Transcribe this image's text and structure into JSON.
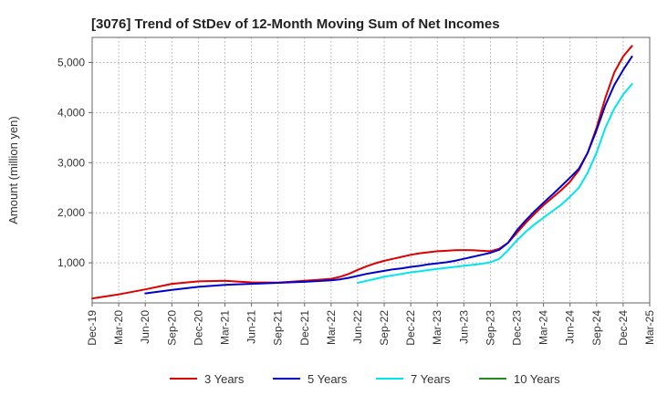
{
  "chart_data": {
    "type": "line",
    "title": "[3076]  Trend of StDev of 12-Month Moving Sum of Net Incomes",
    "ylabel": "Amount (million yen)",
    "xlabel": "",
    "ylim": [
      200,
      5500
    ],
    "yticks": [
      1000,
      2000,
      3000,
      4000,
      5000
    ],
    "ytick_labels": [
      "1,000",
      "2,000",
      "3,000",
      "4,000",
      "5,000"
    ],
    "xticks": [
      "Dec-19",
      "Mar-20",
      "Jun-20",
      "Sep-20",
      "Dec-20",
      "Mar-21",
      "Jun-21",
      "Sep-21",
      "Dec-21",
      "Mar-22",
      "Jun-22",
      "Sep-22",
      "Dec-22",
      "Mar-23",
      "Jun-23",
      "Sep-23",
      "Dec-23",
      "Mar-24",
      "Jun-24",
      "Sep-24",
      "Dec-24",
      "Mar-25"
    ],
    "grid": true,
    "legend_position": "bottom",
    "series": [
      {
        "name": "3 Years",
        "color": "#dd0000",
        "points": [
          [
            "Dec-19",
            290
          ],
          [
            "Mar-20",
            370
          ],
          [
            "Jun-20",
            470
          ],
          [
            "Sep-20",
            580
          ],
          [
            "Dec-20",
            630
          ],
          [
            "Mar-21",
            640
          ],
          [
            "Jun-21",
            610
          ],
          [
            "Sep-21",
            605
          ],
          [
            "Dec-21",
            640
          ],
          [
            "Mar-22",
            680
          ],
          [
            "Apr-22",
            720
          ],
          [
            "May-22",
            780
          ],
          [
            "Jun-22",
            860
          ],
          [
            "Jul-22",
            930
          ],
          [
            "Aug-22",
            990
          ],
          [
            "Sep-22",
            1040
          ],
          [
            "Oct-22",
            1080
          ],
          [
            "Nov-22",
            1120
          ],
          [
            "Dec-22",
            1160
          ],
          [
            "Jan-23",
            1190
          ],
          [
            "Feb-23",
            1210
          ],
          [
            "Mar-23",
            1230
          ],
          [
            "Apr-23",
            1240
          ],
          [
            "May-23",
            1250
          ],
          [
            "Jun-23",
            1255
          ],
          [
            "Jul-23",
            1250
          ],
          [
            "Aug-23",
            1240
          ],
          [
            "Sep-23",
            1230
          ],
          [
            "Oct-23",
            1280
          ],
          [
            "Nov-23",
            1400
          ],
          [
            "Dec-23",
            1600
          ],
          [
            "Jan-24",
            1800
          ],
          [
            "Feb-24",
            1980
          ],
          [
            "Mar-24",
            2150
          ],
          [
            "Apr-24",
            2300
          ],
          [
            "May-24",
            2450
          ],
          [
            "Jun-24",
            2620
          ],
          [
            "Jul-24",
            2850
          ],
          [
            "Aug-24",
            3200
          ],
          [
            "Sep-24",
            3700
          ],
          [
            "Oct-24",
            4300
          ],
          [
            "Nov-24",
            4800
          ],
          [
            "Dec-24",
            5120
          ],
          [
            "Jan-25",
            5330
          ]
        ]
      },
      {
        "name": "5 Years",
        "color": "#0000cc",
        "points": [
          [
            "Jun-20",
            390
          ],
          [
            "Sep-20",
            460
          ],
          [
            "Dec-20",
            520
          ],
          [
            "Mar-21",
            560
          ],
          [
            "Jun-21",
            580
          ],
          [
            "Sep-21",
            600
          ],
          [
            "Dec-21",
            620
          ],
          [
            "Mar-22",
            650
          ],
          [
            "Apr-22",
            670
          ],
          [
            "May-22",
            700
          ],
          [
            "Jun-22",
            740
          ],
          [
            "Jul-22",
            780
          ],
          [
            "Aug-22",
            810
          ],
          [
            "Sep-22",
            840
          ],
          [
            "Oct-22",
            870
          ],
          [
            "Nov-22",
            890
          ],
          [
            "Dec-22",
            920
          ],
          [
            "Jan-23",
            940
          ],
          [
            "Feb-23",
            970
          ],
          [
            "Mar-23",
            990
          ],
          [
            "Apr-23",
            1010
          ],
          [
            "May-23",
            1040
          ],
          [
            "Jun-23",
            1080
          ],
          [
            "Jul-23",
            1120
          ],
          [
            "Aug-23",
            1160
          ],
          [
            "Sep-23",
            1200
          ],
          [
            "Oct-23",
            1260
          ],
          [
            "Nov-23",
            1400
          ],
          [
            "Dec-23",
            1650
          ],
          [
            "Jan-24",
            1850
          ],
          [
            "Feb-24",
            2030
          ],
          [
            "Mar-24",
            2200
          ],
          [
            "Apr-24",
            2360
          ],
          [
            "May-24",
            2530
          ],
          [
            "Jun-24",
            2700
          ],
          [
            "Jul-24",
            2880
          ],
          [
            "Aug-24",
            3200
          ],
          [
            "Sep-24",
            3650
          ],
          [
            "Oct-24",
            4150
          ],
          [
            "Nov-24",
            4550
          ],
          [
            "Dec-24",
            4850
          ],
          [
            "Jan-25",
            5120
          ]
        ]
      },
      {
        "name": "7 Years",
        "color": "#00e5ee",
        "points": [
          [
            "Jun-22",
            600
          ],
          [
            "Jul-22",
            640
          ],
          [
            "Aug-22",
            680
          ],
          [
            "Sep-22",
            720
          ],
          [
            "Oct-22",
            750
          ],
          [
            "Nov-22",
            780
          ],
          [
            "Dec-22",
            810
          ],
          [
            "Jan-23",
            830
          ],
          [
            "Feb-23",
            855
          ],
          [
            "Mar-23",
            880
          ],
          [
            "Apr-23",
            900
          ],
          [
            "May-23",
            920
          ],
          [
            "Jun-23",
            940
          ],
          [
            "Jul-23",
            960
          ],
          [
            "Aug-23",
            980
          ],
          [
            "Sep-23",
            1010
          ],
          [
            "Oct-23",
            1080
          ],
          [
            "Nov-23",
            1250
          ],
          [
            "Dec-23",
            1450
          ],
          [
            "Jan-24",
            1620
          ],
          [
            "Feb-24",
            1770
          ],
          [
            "Mar-24",
            1900
          ],
          [
            "Apr-24",
            2030
          ],
          [
            "May-24",
            2160
          ],
          [
            "Jun-24",
            2320
          ],
          [
            "Jul-24",
            2500
          ],
          [
            "Aug-24",
            2800
          ],
          [
            "Sep-24",
            3200
          ],
          [
            "Oct-24",
            3700
          ],
          [
            "Nov-24",
            4080
          ],
          [
            "Dec-24",
            4360
          ],
          [
            "Jan-25",
            4570
          ]
        ]
      },
      {
        "name": "10 Years",
        "color": "#228b22",
        "points": []
      }
    ]
  }
}
